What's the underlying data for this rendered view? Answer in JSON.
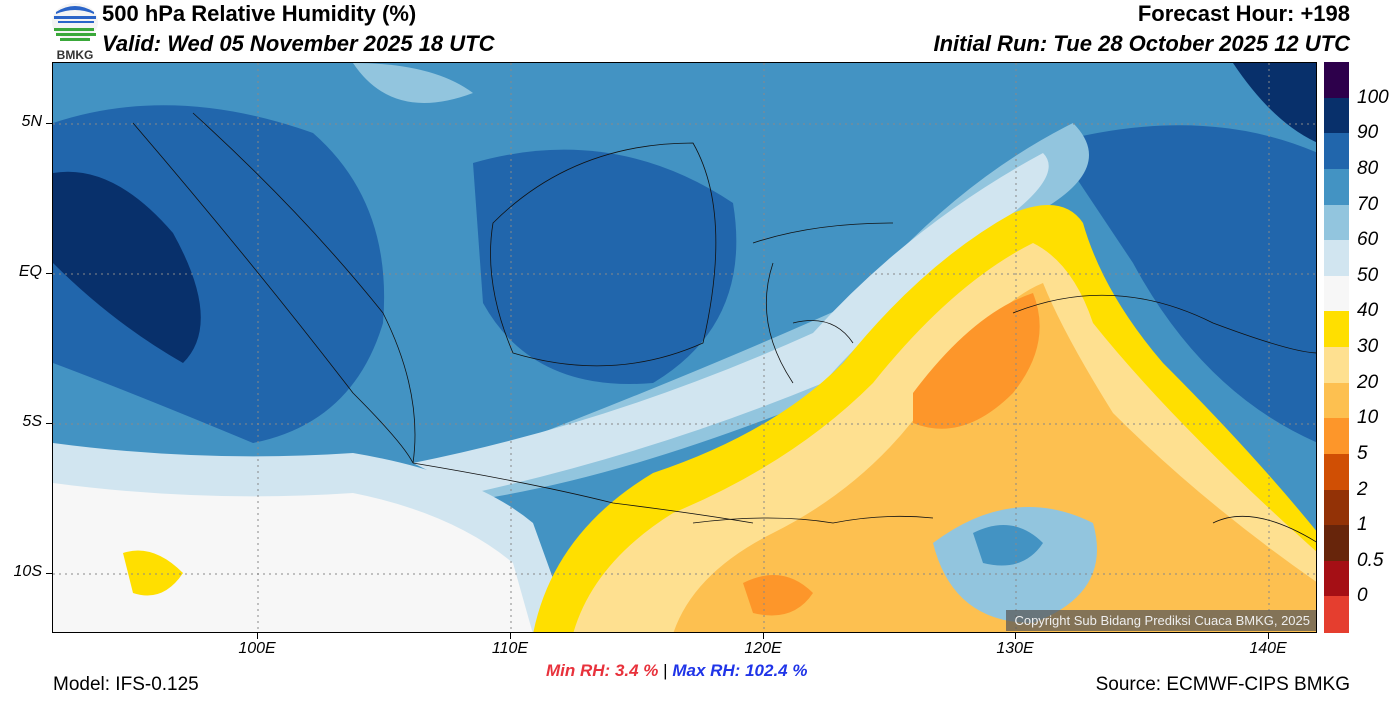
{
  "header": {
    "title": "500 hPa Relative Humidity (%)",
    "valid": "Valid: Wed 05 November 2025 18 UTC",
    "forecast_hour": "Forecast Hour: +198",
    "initial_run": "Initial Run: Tue 28 October 2025 12 UTC",
    "logo_text": "BMKG"
  },
  "map": {
    "lat_labels": [
      "5N",
      "EQ",
      "5S",
      "10S"
    ],
    "lon_labels": [
      "100E",
      "110E",
      "120E",
      "130E",
      "140E"
    ],
    "copyright": "Copyright Sub Bidang Prediksi Cuaca BMKG, 2025"
  },
  "colorbar": {
    "labels": [
      "100",
      "90",
      "80",
      "70",
      "60",
      "50",
      "40",
      "30",
      "20",
      "10",
      "5",
      "2",
      "1",
      "0.5",
      "0"
    ],
    "colors": [
      "#2d004b",
      "#08306b",
      "#2166ac",
      "#4393c3",
      "#92c5de",
      "#d1e5f0",
      "#f7f7f7",
      "#ffdf00",
      "#fee090",
      "#fdc050",
      "#fd962a",
      "#d04f04",
      "#933206",
      "#67250b",
      "#a50f15",
      "#e53e2f"
    ]
  },
  "footer": {
    "min_rh_label": "Min RH:",
    "min_rh_value": "3.4 %",
    "separator": "|",
    "max_rh_label": "Max RH:",
    "max_rh_value": "102.4 %",
    "model": "Model: IFS-0.125",
    "source": "Source: ECMWF-CIPS BMKG"
  }
}
